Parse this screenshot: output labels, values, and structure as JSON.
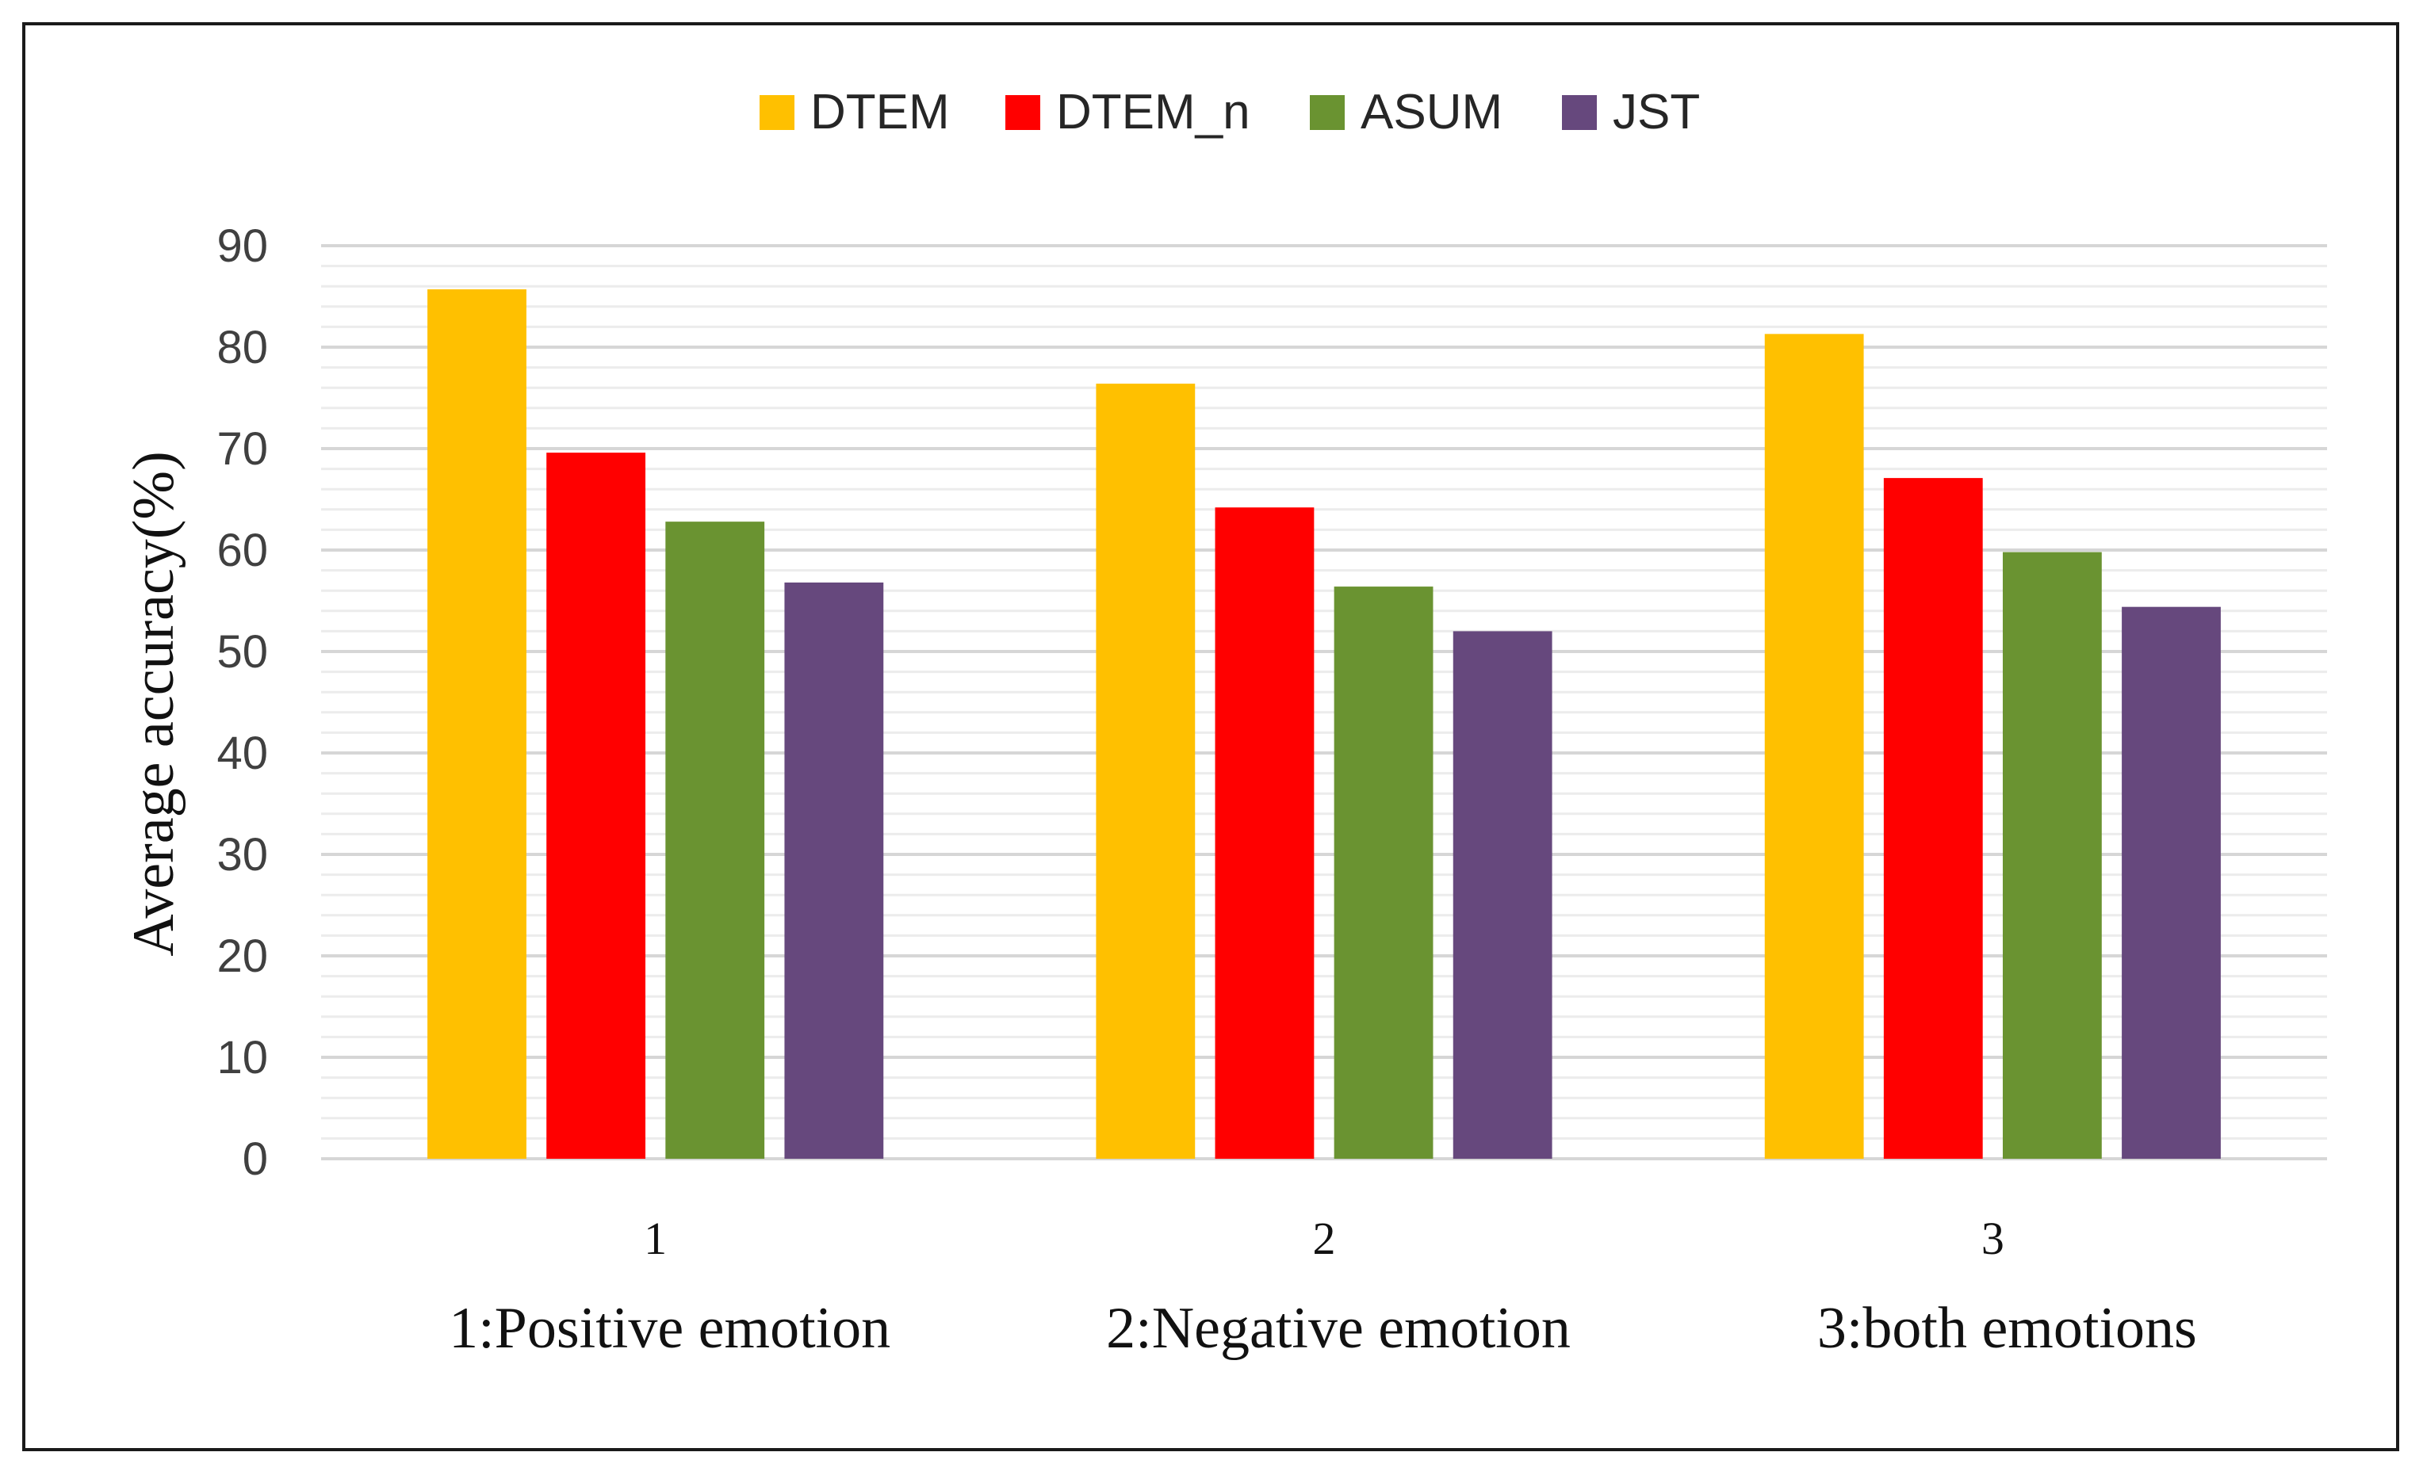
{
  "chart_data": {
    "type": "bar",
    "title": "",
    "ylabel": "Average accuracy(%)",
    "xlabel": "",
    "ylim": [
      0,
      90
    ],
    "yticks": [
      0,
      10,
      20,
      30,
      40,
      50,
      60,
      70,
      80,
      90
    ],
    "categories": [
      "1",
      "2",
      "3"
    ],
    "category_descriptions": [
      "1:Positive emotion",
      "2:Negative emotion",
      "3:both emotions"
    ],
    "series": [
      {
        "name": "DTEM",
        "color": "#FFC000",
        "values": [
          85.7,
          76.4,
          81.3
        ]
      },
      {
        "name": "DTEM_n",
        "color": "#FF0000",
        "values": [
          69.6,
          64.2,
          67.1
        ]
      },
      {
        "name": "ASUM",
        "color": "#6A9331",
        "values": [
          62.8,
          56.4,
          59.8
        ]
      },
      {
        "name": "JST",
        "color": "#66487D",
        "values": [
          56.8,
          52.0,
          54.4
        ]
      }
    ],
    "legend_position": "top-center",
    "grid": true
  }
}
